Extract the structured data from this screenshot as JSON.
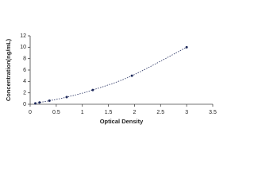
{
  "chart_data": {
    "type": "scatter",
    "xlabel": "Optical Density",
    "ylabel": "Concentration(ng/mL)",
    "x": [
      0.1,
      0.18,
      0.37,
      0.7,
      1.2,
      1.95,
      3.0
    ],
    "values": [
      0.156,
      0.31,
      0.625,
      1.25,
      2.5,
      5,
      10
    ],
    "color": "#1f2a5c",
    "xlim": [
      0,
      3.5
    ],
    "xticks": [
      0,
      0.5,
      1,
      1.5,
      2,
      2.5,
      3,
      3.5
    ],
    "ylim": [
      0,
      12
    ],
    "yticks": [
      0,
      2,
      4,
      6,
      8,
      10,
      12
    ],
    "grid": false
  }
}
